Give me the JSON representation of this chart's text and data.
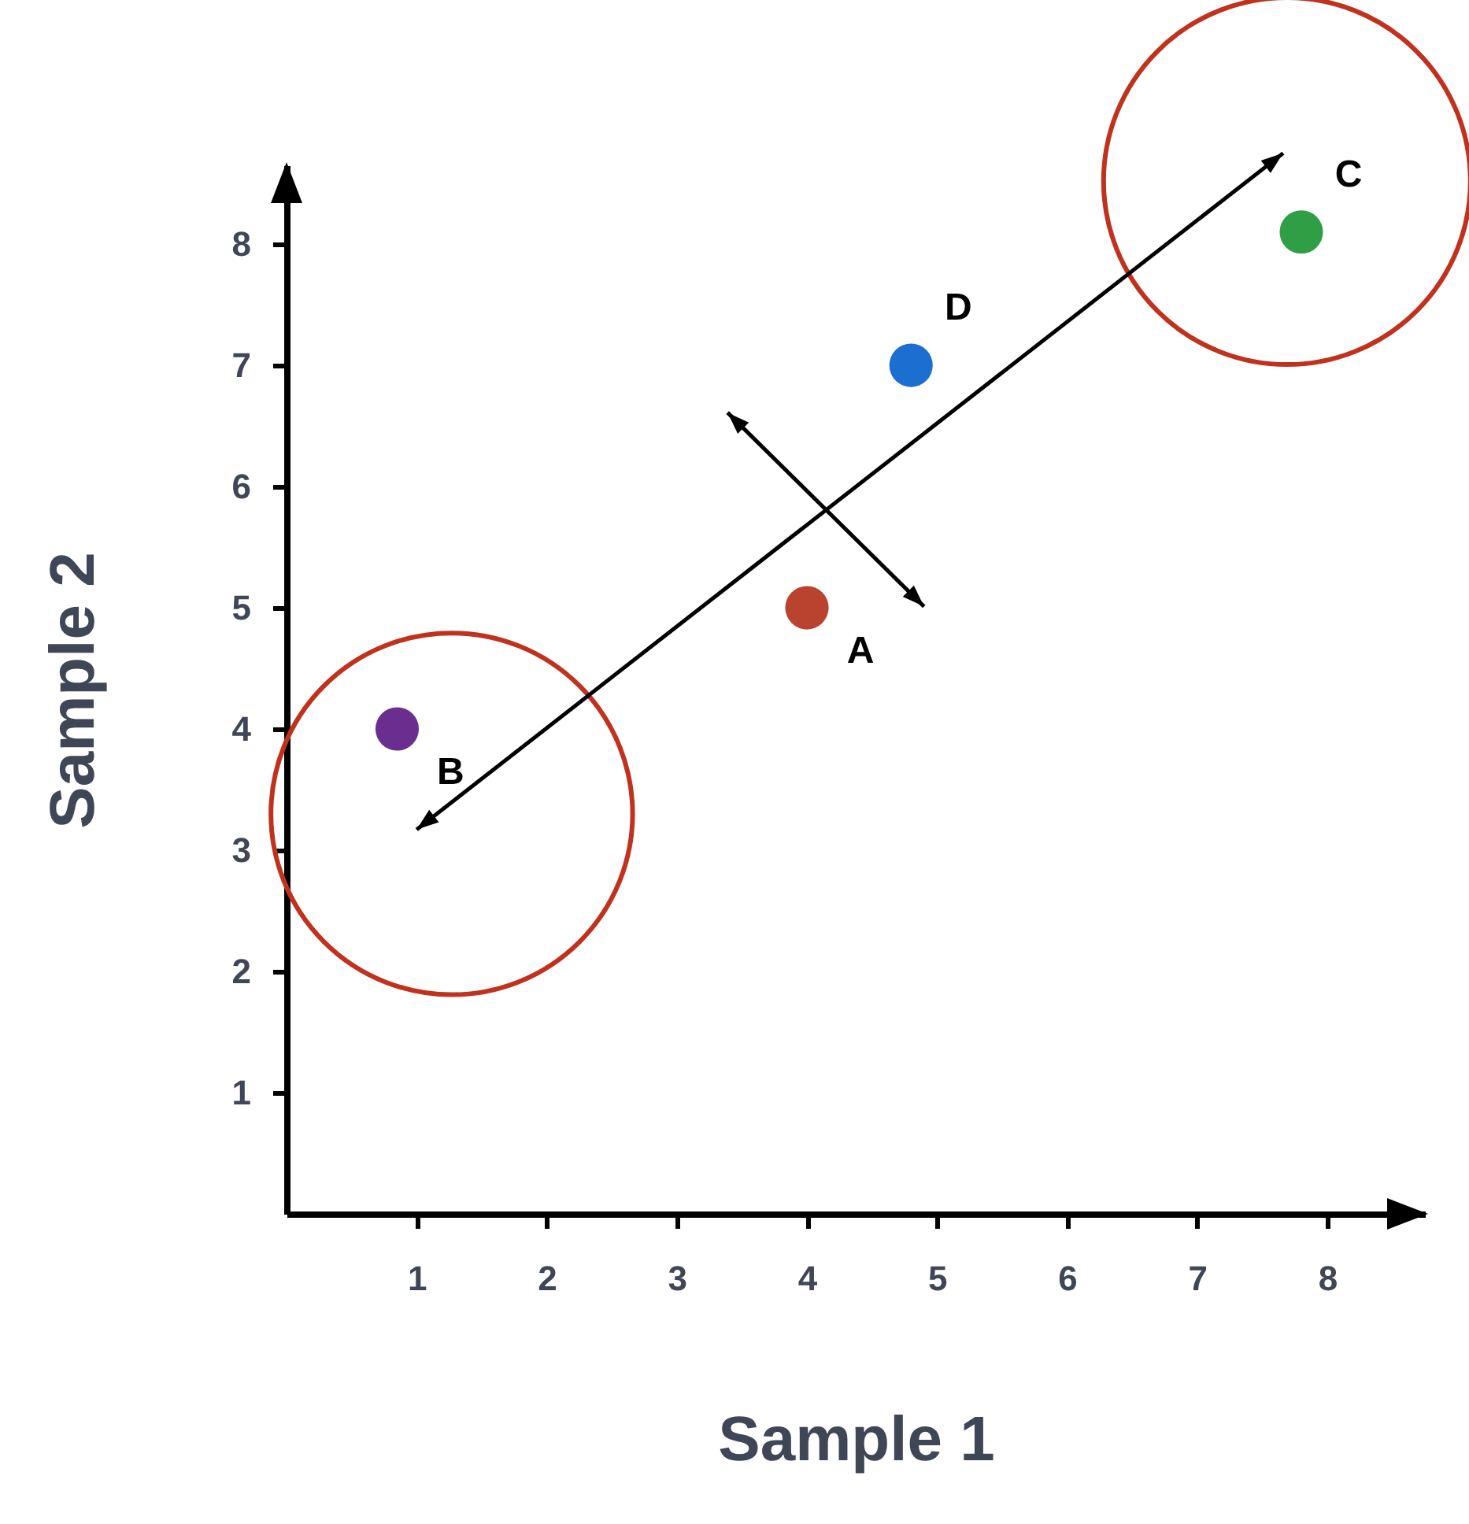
{
  "chart_data": {
    "type": "scatter",
    "xlabel": "Sample 1",
    "ylabel": "Sample 2",
    "xlim": [
      0,
      8.75
    ],
    "ylim": [
      0,
      8.65
    ],
    "xticks": [
      1,
      2,
      3,
      4,
      5,
      6,
      7,
      8
    ],
    "yticks": [
      1,
      2,
      3,
      4,
      5,
      6,
      7,
      8
    ],
    "grid": false,
    "marker": "circle",
    "series": [
      {
        "name": "A",
        "color": "#b9432e",
        "x": [
          4
        ],
        "values": [
          5
        ]
      },
      {
        "name": "B",
        "color": "#6a2f8e",
        "x": [
          0.85
        ],
        "values": [
          4
        ]
      },
      {
        "name": "C",
        "color": "#2f9e44",
        "x": [
          7.8
        ],
        "values": [
          8.1
        ]
      },
      {
        "name": "D",
        "color": "#1a6fd1",
        "x": [
          4.8
        ],
        "values": [
          7
        ]
      }
    ]
  }
}
